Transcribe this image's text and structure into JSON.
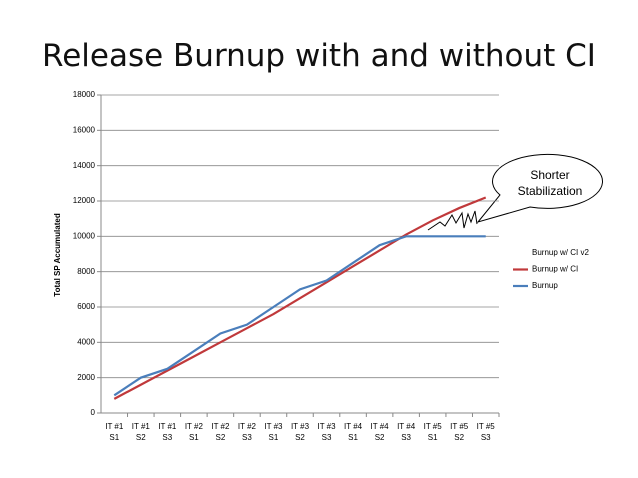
{
  "chart_data": {
    "type": "line",
    "title": "Release Burnup with and without CI",
    "y_label": "Total SP Accumulated",
    "categories": [
      "IT #1 S1",
      "IT #1 S2",
      "IT #1 S3",
      "IT #2 S1",
      "IT #2 S2",
      "IT #2 S3",
      "IT #3 S1",
      "IT #3 S2",
      "IT #3 S3",
      "IT #4 S1",
      "IT #4 S2",
      "IT #4 S3",
      "IT #5 S1",
      "IT #5 S2",
      "IT #5 S3"
    ],
    "series": [
      {
        "name": "Burnup w/ CI v2",
        "values": [
          null,
          null,
          null,
          null,
          null,
          null,
          null,
          null,
          null,
          null,
          null,
          null,
          null,
          null,
          null
        ]
      },
      {
        "name": "Burnup w/ CI",
        "color": "#c0393b",
        "values": [
          800,
          1600,
          2400,
          3200,
          4000,
          4800,
          5600,
          6500,
          7400,
          8300,
          9200,
          10100,
          10900,
          11600,
          12200
        ]
      },
      {
        "name": "Burnup",
        "color": "#4a7ebb",
        "values": [
          1000,
          2000,
          2500,
          3500,
          4500,
          5000,
          6000,
          7000,
          7500,
          8500,
          9500,
          10000,
          10000,
          10000,
          10000
        ]
      }
    ],
    "ylim": [
      0,
      18000
    ],
    "yticks": [
      0,
      2000,
      4000,
      6000,
      8000,
      10000,
      12000,
      14000,
      16000,
      18000
    ],
    "grid": true,
    "legend": "right",
    "annotation": "Shorter Stabilization"
  }
}
